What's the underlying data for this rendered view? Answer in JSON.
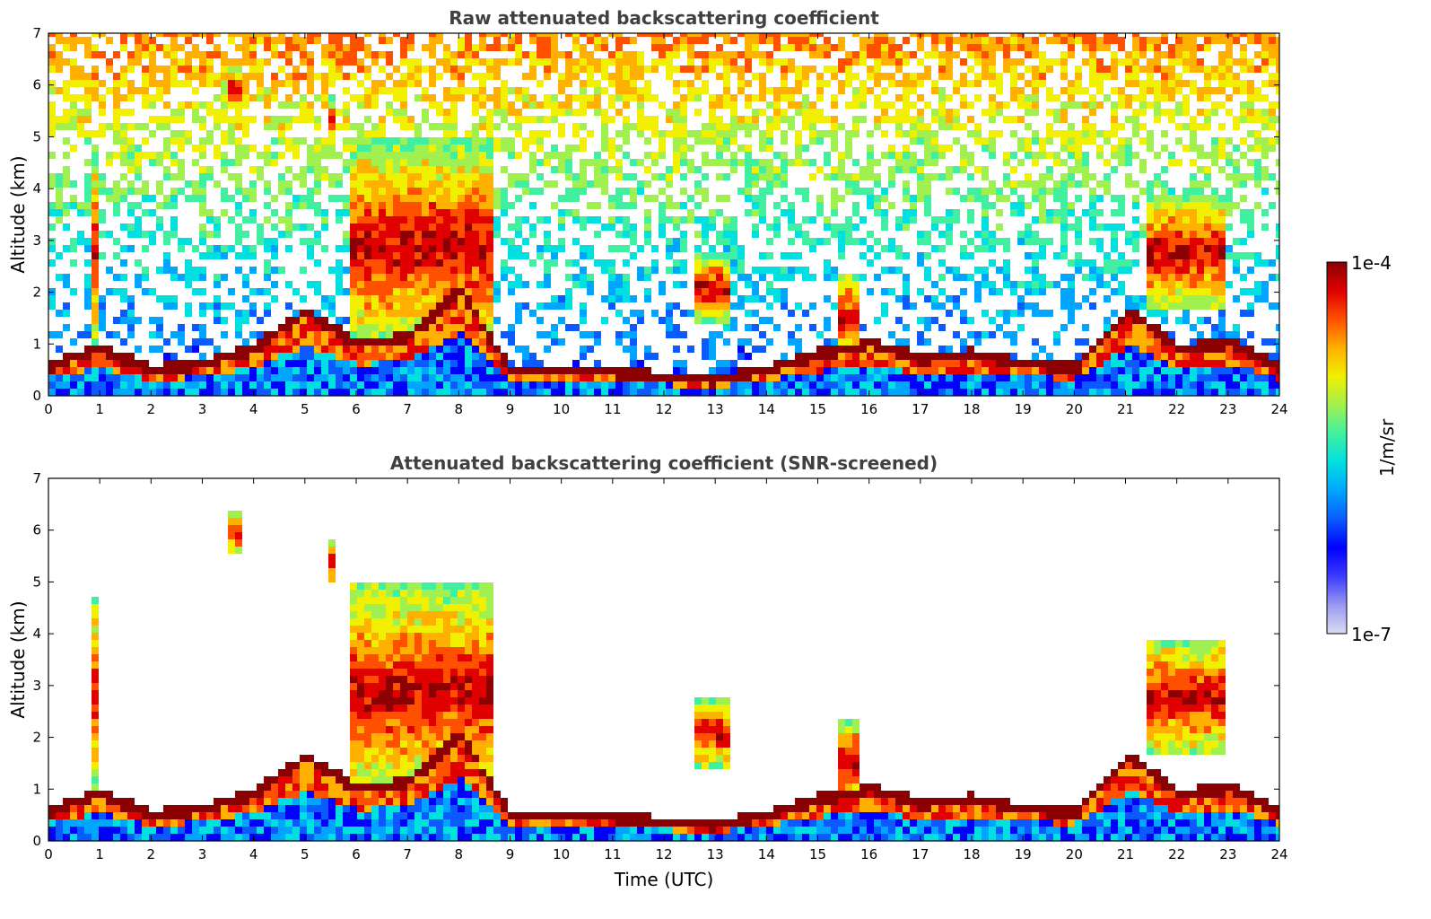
{
  "chart_data": [
    {
      "type": "heatmap",
      "title": "Raw attenuated backscattering coefficient",
      "xlabel": "",
      "ylabel": "Altitude (km)",
      "xlim": [
        0,
        24
      ],
      "ylim": [
        0,
        7
      ],
      "x_ticks": [
        0,
        1,
        2,
        3,
        4,
        5,
        6,
        7,
        8,
        9,
        10,
        11,
        12,
        13,
        14,
        15,
        16,
        17,
        18,
        19,
        20,
        21,
        22,
        23,
        24
      ],
      "y_ticks": [
        0,
        1,
        2,
        3,
        4,
        5,
        6,
        7
      ],
      "boundary_layer_top_km": [
        [
          0,
          0.55
        ],
        [
          1,
          0.9
        ],
        [
          2,
          0.5
        ],
        [
          3,
          0.6
        ],
        [
          4,
          0.9
        ],
        [
          5,
          1.6
        ],
        [
          6,
          1.0
        ],
        [
          7,
          1.1
        ],
        [
          8,
          2.0
        ],
        [
          9,
          0.5
        ],
        [
          10,
          0.45
        ],
        [
          11,
          0.45
        ],
        [
          12,
          0.35
        ],
        [
          13,
          0.3
        ],
        [
          14,
          0.5
        ],
        [
          15,
          0.8
        ],
        [
          15.6,
          0.9
        ],
        [
          16,
          1.0
        ],
        [
          17,
          0.7
        ],
        [
          18,
          0.8
        ],
        [
          19,
          0.6
        ],
        [
          20,
          0.55
        ],
        [
          21,
          1.6
        ],
        [
          22,
          0.9
        ],
        [
          23,
          1.0
        ],
        [
          24,
          0.5
        ]
      ],
      "cloud_features": [
        {
          "t_start": 0.8,
          "t_end": 1.0,
          "alt_bottom_km": 1.0,
          "alt_top_km": 4.6
        },
        {
          "t_start": 3.5,
          "t_end": 3.8,
          "alt_bottom_km": 5.5,
          "alt_top_km": 6.3
        },
        {
          "t_start": 5.4,
          "t_end": 5.6,
          "alt_bottom_km": 4.9,
          "alt_top_km": 5.7
        },
        {
          "t_start": 5.9,
          "t_end": 8.6,
          "alt_bottom_km": 0.8,
          "alt_top_km": 4.9
        },
        {
          "t_start": 12.5,
          "t_end": 13.2,
          "alt_bottom_km": 1.4,
          "alt_top_km": 2.7
        },
        {
          "t_start": 15.4,
          "t_end": 15.8,
          "alt_bottom_km": 0.6,
          "alt_top_km": 2.4
        },
        {
          "t_start": 21.4,
          "t_end": 22.9,
          "alt_bottom_km": 1.6,
          "alt_top_km": 3.9
        }
      ]
    },
    {
      "type": "heatmap",
      "title": "Attenuated backscattering coefficient (SNR-screened)",
      "xlabel": "Time (UTC)",
      "ylabel": "Altitude (km)",
      "xlim": [
        0,
        24
      ],
      "ylim": [
        0,
        7
      ],
      "x_ticks": [
        0,
        1,
        2,
        3,
        4,
        5,
        6,
        7,
        8,
        9,
        10,
        11,
        12,
        13,
        14,
        15,
        16,
        17,
        18,
        19,
        20,
        21,
        22,
        23,
        24
      ],
      "y_ticks": [
        0,
        1,
        2,
        3,
        4,
        5,
        6,
        7
      ]
    }
  ],
  "colorbar": {
    "label": "1/m/sr",
    "max_label": "1e-4",
    "min_label": "1e-7",
    "colors": [
      "#dcdcf5",
      "#9999f0",
      "#3c3cff",
      "#0000ff",
      "#0a5aff",
      "#00a5ff",
      "#00e0e0",
      "#40f0a0",
      "#a0f050",
      "#f0f000",
      "#ffb000",
      "#ff5000",
      "#e00000",
      "#8b0000"
    ]
  }
}
